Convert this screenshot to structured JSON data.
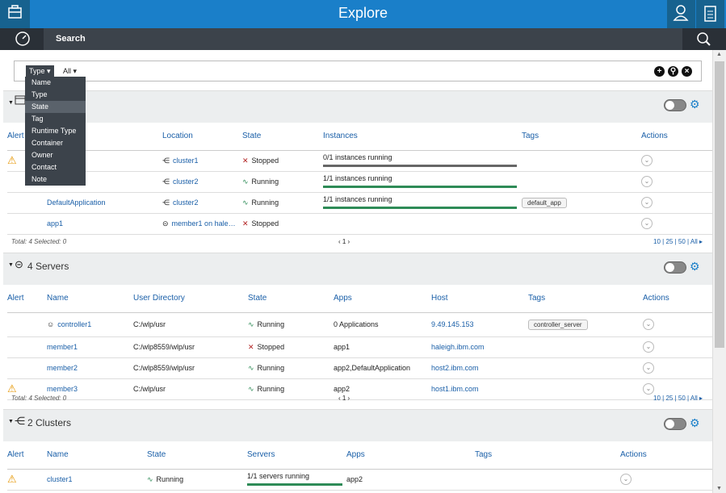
{
  "header": {
    "title": "Explore",
    "left_icon": "toolbox-icon",
    "user_icon": "user-icon",
    "clipboard_icon": "clipboard-icon"
  },
  "subbar": {
    "search_label": "Search",
    "dashboard_icon": "dashboard-icon",
    "search_icon": "search-icon"
  },
  "filter": {
    "type_chip": "Type ▾",
    "all_chip": "All ▾"
  },
  "dropdown": {
    "items": [
      "Name",
      "Type",
      "State",
      "Tag",
      "Runtime Type",
      "Container",
      "Owner",
      "Contact",
      "Note"
    ]
  },
  "applications": {
    "columns": [
      "Alert",
      "Location",
      "State",
      "Instances",
      "Tags",
      "Actions"
    ],
    "rows": [
      {
        "alert": "⚠",
        "location": "cluster1",
        "state": "Stopped",
        "instances": "0/1 instances running",
        "tag": ""
      },
      {
        "alert": "",
        "location": "cluster2",
        "state": "Running",
        "instances": "1/1 instances running",
        "tag": ""
      },
      {
        "alert": "",
        "name": "DefaultApplication",
        "location": "cluster2",
        "state": "Running",
        "instances": "1/1 instances running",
        "tag": "default_app"
      },
      {
        "alert": "",
        "name": "app1",
        "location": "member1 on hale…",
        "state": "Stopped",
        "instances": "",
        "tag": ""
      }
    ],
    "footer": "Total: 4 Selected: 0",
    "pager": "‹ 1 ›",
    "page_sizes": "10 | 25 | 50 | All ▸"
  },
  "servers": {
    "title": "4 Servers",
    "columns": [
      "Alert",
      "Name",
      "User Directory",
      "State",
      "Apps",
      "Host",
      "Tags",
      "Actions"
    ],
    "rows": [
      {
        "alert": "",
        "name": "controller1",
        "dir": "C:/wlp/usr",
        "state": "Running",
        "apps": "0 Applications",
        "host": "9.49.145.153",
        "tag": "controller_server"
      },
      {
        "alert": "",
        "name": "member1",
        "dir": "C:/wlp8559/wlp/usr",
        "state": "Stopped",
        "apps": "app1",
        "host": "haleigh.ibm.com",
        "tag": ""
      },
      {
        "alert": "",
        "name": "member2",
        "dir": "C:/wlp8559/wlp/usr",
        "state": "Running",
        "apps": "app2,DefaultApplication",
        "host": "host2.ibm.com",
        "tag": ""
      },
      {
        "alert": "⚠",
        "name": "member3",
        "dir": "C:/wlp/usr",
        "state": "Running",
        "apps": "app2",
        "host": "host1.ibm.com",
        "tag": ""
      }
    ],
    "footer": "Total: 4 Selected: 0",
    "pager": "‹ 1 ›",
    "page_sizes": "10 | 25 | 50 | All ▸"
  },
  "clusters": {
    "title": "2 Clusters",
    "columns": [
      "Alert",
      "Name",
      "State",
      "Servers",
      "Apps",
      "Tags",
      "Actions"
    ],
    "rows": [
      {
        "alert": "⚠",
        "name": "cluster1",
        "state": "Running",
        "servers": "1/1 servers running",
        "apps": "app2"
      }
    ]
  },
  "colors": {
    "running": "#2e8b57",
    "stopped": "#b22222",
    "accent": "#1a7fc9"
  }
}
